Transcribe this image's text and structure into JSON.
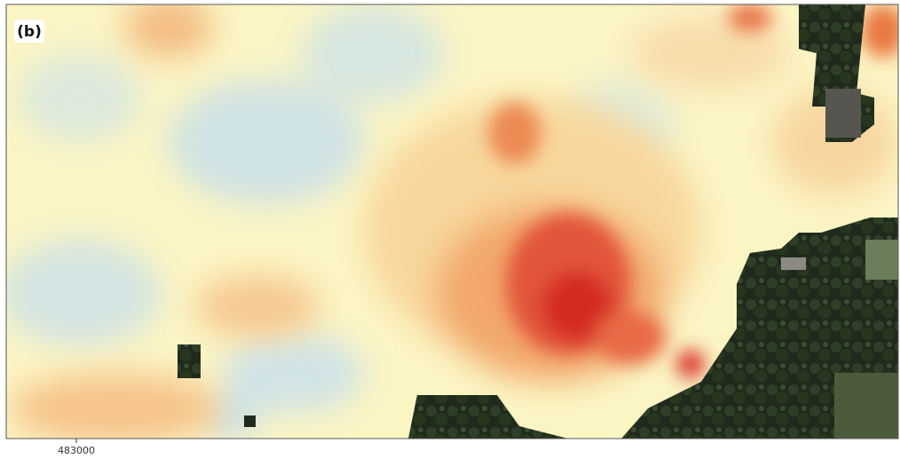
{
  "map": {
    "panel_label": "(b)",
    "xticks": [
      483000
    ]
  }
}
